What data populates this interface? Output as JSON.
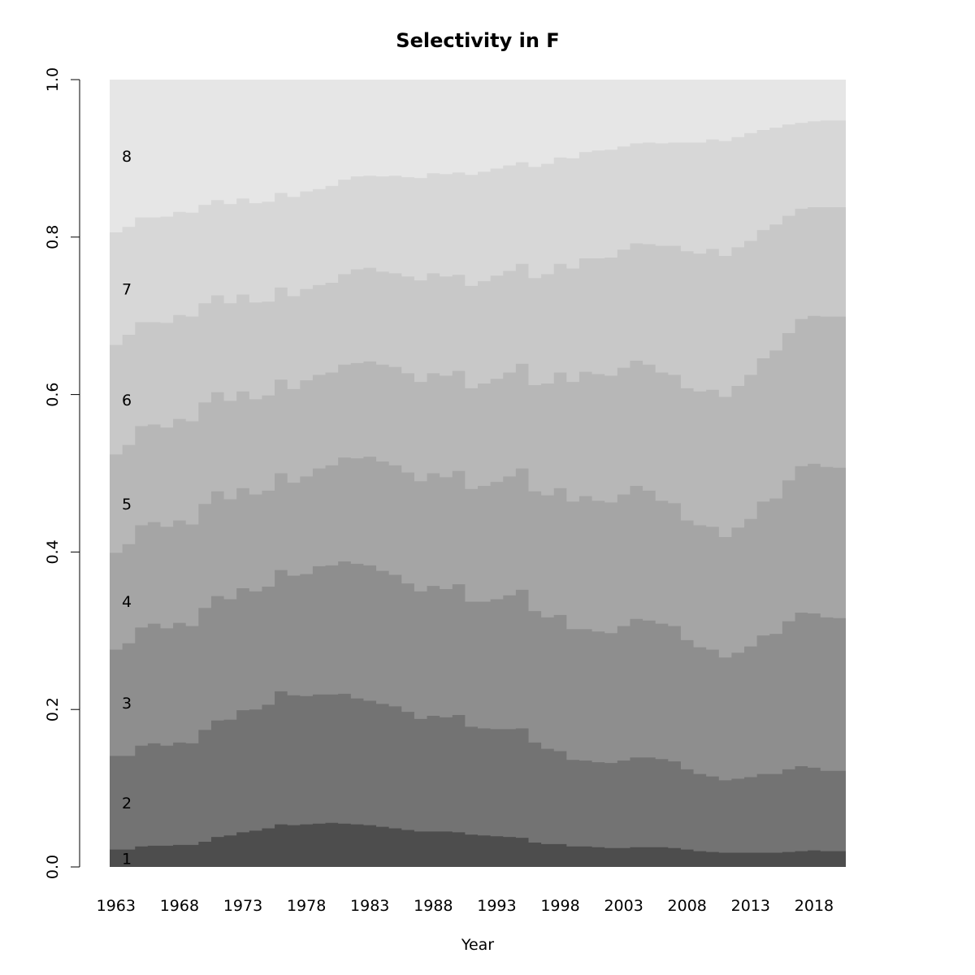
{
  "chart_data": {
    "type": "area",
    "stacked": true,
    "step": true,
    "title": "Selectivity in F",
    "xlabel": "Year",
    "ylabel": "",
    "xlim": [
      1963,
      2021
    ],
    "ylim": [
      0,
      1
    ],
    "x_ticks": [
      "1963",
      "1968",
      "1973",
      "1978",
      "1983",
      "1988",
      "1993",
      "1998",
      "2003",
      "2008",
      "2013",
      "2018"
    ],
    "y_ticks": [
      "0.0",
      "0.2",
      "0.4",
      "0.6",
      "0.8",
      "1.0"
    ],
    "grid": false,
    "legend": "none",
    "years": [
      1963,
      1964,
      1965,
      1966,
      1967,
      1968,
      1969,
      1970,
      1971,
      1972,
      1973,
      1974,
      1975,
      1976,
      1977,
      1978,
      1979,
      1980,
      1981,
      1982,
      1983,
      1984,
      1985,
      1986,
      1987,
      1988,
      1989,
      1990,
      1991,
      1992,
      1993,
      1994,
      1995,
      1996,
      1997,
      1998,
      1999,
      2000,
      2001,
      2002,
      2003,
      2004,
      2005,
      2006,
      2007,
      2008,
      2009,
      2010,
      2011,
      2012,
      2013,
      2014,
      2015,
      2016,
      2017,
      2018,
      2019,
      2020
    ],
    "series": [
      {
        "name": "1",
        "color": "#4d4d4d",
        "cumulative": [
          0.022,
          0.022,
          0.026,
          0.027,
          0.027,
          0.028,
          0.028,
          0.032,
          0.038,
          0.04,
          0.044,
          0.046,
          0.049,
          0.054,
          0.053,
          0.054,
          0.055,
          0.056,
          0.055,
          0.054,
          0.053,
          0.051,
          0.049,
          0.047,
          0.045,
          0.045,
          0.045,
          0.044,
          0.041,
          0.04,
          0.039,
          0.038,
          0.037,
          0.031,
          0.029,
          0.029,
          0.026,
          0.026,
          0.025,
          0.024,
          0.024,
          0.025,
          0.025,
          0.025,
          0.024,
          0.022,
          0.02,
          0.019,
          0.018,
          0.018,
          0.018,
          0.018,
          0.018,
          0.019,
          0.02,
          0.021,
          0.02,
          0.02
        ]
      },
      {
        "name": "2",
        "color": "#737373",
        "cumulative": [
          0.141,
          0.141,
          0.154,
          0.157,
          0.154,
          0.158,
          0.157,
          0.174,
          0.186,
          0.187,
          0.199,
          0.2,
          0.206,
          0.223,
          0.218,
          0.217,
          0.219,
          0.219,
          0.22,
          0.214,
          0.211,
          0.207,
          0.204,
          0.197,
          0.188,
          0.192,
          0.19,
          0.193,
          0.178,
          0.176,
          0.175,
          0.175,
          0.176,
          0.158,
          0.15,
          0.147,
          0.136,
          0.135,
          0.133,
          0.132,
          0.135,
          0.139,
          0.139,
          0.137,
          0.134,
          0.124,
          0.118,
          0.115,
          0.11,
          0.112,
          0.114,
          0.118,
          0.118,
          0.124,
          0.128,
          0.126,
          0.122,
          0.122
        ]
      },
      {
        "name": "3",
        "color": "#8e8e8e",
        "cumulative": [
          0.276,
          0.284,
          0.304,
          0.309,
          0.303,
          0.31,
          0.306,
          0.329,
          0.344,
          0.34,
          0.354,
          0.35,
          0.356,
          0.377,
          0.37,
          0.372,
          0.382,
          0.383,
          0.388,
          0.385,
          0.383,
          0.376,
          0.371,
          0.36,
          0.35,
          0.357,
          0.353,
          0.359,
          0.337,
          0.337,
          0.34,
          0.345,
          0.352,
          0.325,
          0.317,
          0.32,
          0.302,
          0.302,
          0.299,
          0.297,
          0.306,
          0.315,
          0.313,
          0.309,
          0.306,
          0.288,
          0.279,
          0.276,
          0.266,
          0.272,
          0.28,
          0.294,
          0.296,
          0.312,
          0.323,
          0.322,
          0.317,
          0.316
        ]
      },
      {
        "name": "4",
        "color": "#a5a5a5",
        "cumulative": [
          0.399,
          0.41,
          0.434,
          0.438,
          0.432,
          0.44,
          0.435,
          0.461,
          0.477,
          0.467,
          0.481,
          0.473,
          0.478,
          0.5,
          0.488,
          0.496,
          0.506,
          0.51,
          0.52,
          0.519,
          0.521,
          0.515,
          0.51,
          0.501,
          0.49,
          0.5,
          0.495,
          0.503,
          0.48,
          0.484,
          0.489,
          0.496,
          0.506,
          0.477,
          0.472,
          0.481,
          0.464,
          0.471,
          0.465,
          0.463,
          0.473,
          0.484,
          0.478,
          0.465,
          0.462,
          0.44,
          0.434,
          0.432,
          0.419,
          0.431,
          0.442,
          0.464,
          0.468,
          0.491,
          0.509,
          0.512,
          0.508,
          0.507
        ]
      },
      {
        "name": "5",
        "color": "#b7b7b7",
        "cumulative": [
          0.524,
          0.536,
          0.56,
          0.562,
          0.558,
          0.569,
          0.566,
          0.59,
          0.603,
          0.592,
          0.604,
          0.594,
          0.599,
          0.619,
          0.607,
          0.618,
          0.625,
          0.628,
          0.638,
          0.64,
          0.642,
          0.638,
          0.635,
          0.627,
          0.616,
          0.627,
          0.624,
          0.63,
          0.608,
          0.614,
          0.62,
          0.628,
          0.639,
          0.612,
          0.614,
          0.628,
          0.616,
          0.629,
          0.626,
          0.624,
          0.634,
          0.643,
          0.638,
          0.628,
          0.625,
          0.608,
          0.604,
          0.606,
          0.597,
          0.611,
          0.625,
          0.646,
          0.656,
          0.678,
          0.696,
          0.7,
          0.699,
          0.699
        ]
      },
      {
        "name": "6",
        "color": "#c8c8c8",
        "cumulative": [
          0.663,
          0.676,
          0.692,
          0.692,
          0.691,
          0.701,
          0.699,
          0.716,
          0.726,
          0.716,
          0.727,
          0.717,
          0.718,
          0.736,
          0.725,
          0.734,
          0.739,
          0.742,
          0.753,
          0.759,
          0.761,
          0.756,
          0.754,
          0.75,
          0.745,
          0.754,
          0.75,
          0.752,
          0.738,
          0.744,
          0.751,
          0.757,
          0.766,
          0.748,
          0.753,
          0.766,
          0.76,
          0.773,
          0.773,
          0.774,
          0.784,
          0.792,
          0.791,
          0.789,
          0.789,
          0.782,
          0.779,
          0.785,
          0.776,
          0.787,
          0.795,
          0.809,
          0.816,
          0.827,
          0.836,
          0.838,
          0.838,
          0.838
        ]
      },
      {
        "name": "7",
        "color": "#d7d7d7",
        "cumulative": [
          0.806,
          0.813,
          0.825,
          0.825,
          0.826,
          0.832,
          0.831,
          0.841,
          0.847,
          0.842,
          0.849,
          0.843,
          0.845,
          0.856,
          0.851,
          0.858,
          0.861,
          0.865,
          0.873,
          0.877,
          0.878,
          0.877,
          0.878,
          0.876,
          0.875,
          0.881,
          0.88,
          0.882,
          0.879,
          0.883,
          0.887,
          0.891,
          0.895,
          0.889,
          0.893,
          0.901,
          0.9,
          0.908,
          0.91,
          0.911,
          0.915,
          0.919,
          0.92,
          0.919,
          0.92,
          0.92,
          0.92,
          0.924,
          0.922,
          0.927,
          0.932,
          0.936,
          0.939,
          0.943,
          0.945,
          0.947,
          0.948,
          0.948
        ]
      },
      {
        "name": "8",
        "color": "#e6e6e6",
        "cumulative": [
          1,
          1,
          1,
          1,
          1,
          1,
          1,
          1,
          1,
          1,
          1,
          1,
          1,
          1,
          1,
          1,
          1,
          1,
          1,
          1,
          1,
          1,
          1,
          1,
          1,
          1,
          1,
          1,
          1,
          1,
          1,
          1,
          1,
          1,
          1,
          1,
          1,
          1,
          1,
          1,
          1,
          1,
          1,
          1,
          1,
          1,
          1,
          1,
          1,
          1,
          1,
          1,
          1,
          1,
          1,
          1,
          1,
          1
        ]
      }
    ]
  }
}
